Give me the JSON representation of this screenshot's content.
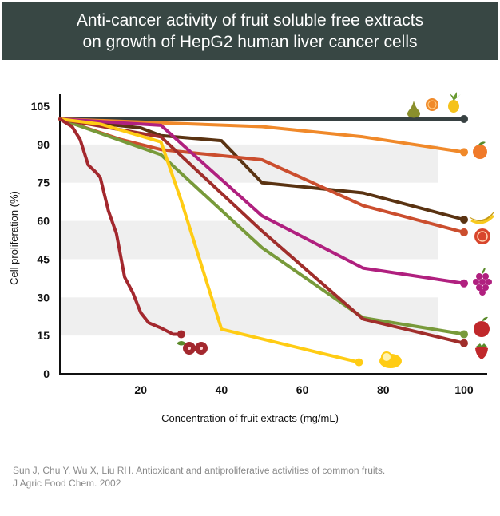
{
  "header": {
    "title_line1": "Anti-cancer activity of fruit soluble free extracts",
    "title_line2": "on growth of HepG2 human liver cancer cells"
  },
  "citation": {
    "line1": "Sun J, Chu Y, Wu X, Liu RH. Antioxidant and antiproliferative activities of common fruits.",
    "line2": "J Agric Food Chem. 2002"
  },
  "colors": {
    "banner_bg": "#384744",
    "stripe": "#efefef"
  },
  "chart_data": {
    "type": "line",
    "title": "",
    "xlabel": "Concentration of fruit extracts (mg/mL)",
    "ylabel": "Cell proliferation (%)",
    "xlim": [
      0,
      105
    ],
    "ylim": [
      0,
      105
    ],
    "xticks": [
      20,
      40,
      60,
      80,
      100
    ],
    "yticks": [
      0,
      15,
      30,
      45,
      60,
      75,
      90,
      105
    ],
    "grid": "alternating horizontal bands",
    "legend": "none (fruit icons at line ends)",
    "series": [
      {
        "icon": "pear-orange-pineapple-icon",
        "color": "#374142",
        "x": [
          0,
          100
        ],
        "y": [
          100,
          100
        ]
      },
      {
        "icon": "peach-icon",
        "color": "#F0892A",
        "x": [
          0,
          25,
          50,
          75,
          100
        ],
        "y": [
          100,
          98.5,
          97,
          93,
          87
        ]
      },
      {
        "icon": "banana-icon",
        "color": "#5A3312",
        "x": [
          0,
          20,
          25,
          40,
          50,
          75,
          100
        ],
        "y": [
          100,
          96.5,
          93.5,
          91.5,
          75,
          71,
          60.5
        ]
      },
      {
        "icon": "grapefruit-icon",
        "color": "#CB4E2E",
        "x": [
          0,
          15,
          25,
          50,
          75,
          100
        ],
        "y": [
          100,
          92,
          88,
          84,
          66,
          55.5
        ]
      },
      {
        "icon": "grape-icon",
        "color": "#B0207F",
        "x": [
          0,
          25,
          50,
          75,
          100
        ],
        "y": [
          100,
          97.5,
          62,
          41.5,
          35.5
        ]
      },
      {
        "icon": "apple-icon",
        "color": "#789A3A",
        "x": [
          0,
          25,
          50,
          75,
          100
        ],
        "y": [
          100,
          86,
          49.5,
          22,
          15.5
        ]
      },
      {
        "icon": "strawberry-icon",
        "color": "#A02E2B",
        "x": [
          0,
          25,
          50,
          75,
          100
        ],
        "y": [
          100,
          93,
          56,
          21.5,
          12
        ]
      },
      {
        "icon": "lemon-icon",
        "color": "#FFCC14",
        "x": [
          0,
          10,
          25,
          30,
          40,
          74
        ],
        "y": [
          100,
          98,
          91,
          68,
          17.5,
          4.5
        ]
      },
      {
        "icon": "cranberry-icon",
        "color": "#A3282E",
        "x": [
          0,
          3,
          5,
          7,
          9,
          10,
          12,
          14,
          16,
          18,
          20,
          22,
          25,
          28,
          30
        ],
        "y": [
          100,
          97,
          92,
          82,
          79,
          77,
          64,
          55,
          38,
          32,
          24,
          20,
          18,
          15.5,
          15.5
        ]
      }
    ]
  }
}
